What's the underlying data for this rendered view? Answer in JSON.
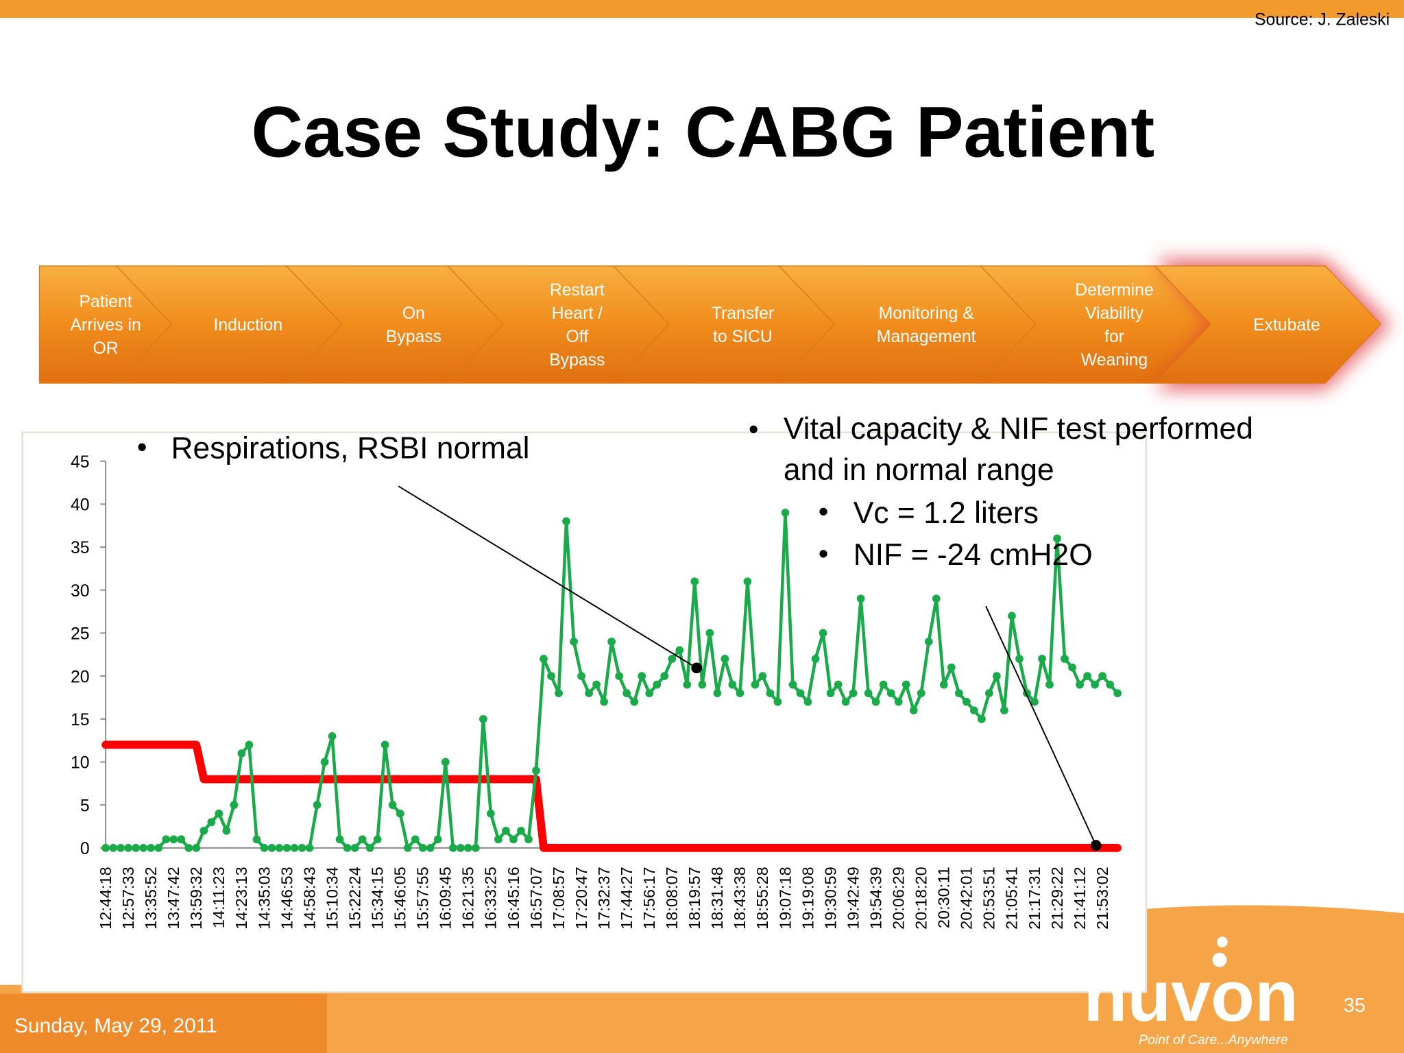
{
  "header": {
    "source": "Source: J. Zaleski",
    "title": "Case Study: CABG Patient"
  },
  "steps": [
    [
      "Patient",
      "Arrives in",
      "OR"
    ],
    [
      "Induction"
    ],
    [
      "On",
      "Bypass"
    ],
    [
      "Restart",
      "Heart /",
      "Off",
      "Bypass"
    ],
    [
      "Transfer",
      "to SICU"
    ],
    [
      "Monitoring &",
      "Management"
    ],
    [
      "Determine",
      "Viability",
      "for",
      "Weaning"
    ],
    [
      "Extubate"
    ]
  ],
  "chart_data": {
    "type": "line",
    "categories": [
      "12:44:18",
      null,
      null,
      "12:57:33",
      null,
      null,
      "13:35:52",
      null,
      null,
      "13:47:42",
      null,
      null,
      "13:59:32",
      null,
      null,
      "14:11:23",
      null,
      null,
      "14:23:13",
      null,
      null,
      "14:35:03",
      null,
      null,
      "14:46:53",
      null,
      null,
      "14:58:43",
      null,
      null,
      "15:10:34",
      null,
      null,
      "15:22:24",
      null,
      null,
      "15:34:15",
      null,
      null,
      "15:46:05",
      null,
      null,
      "15:57:55",
      null,
      null,
      "16:09:45",
      null,
      null,
      "16:21:35",
      null,
      null,
      "16:33:25",
      null,
      null,
      "16:45:16",
      null,
      null,
      "16:57:07",
      null,
      null,
      "17:08:57",
      null,
      null,
      "17:20:47",
      null,
      null,
      "17:32:37",
      null,
      null,
      "17:44:27",
      null,
      null,
      "17:56:17",
      null,
      null,
      "18:08:07",
      null,
      null,
      "18:19:57",
      null,
      null,
      "18:31:48",
      null,
      null,
      "18:43:38",
      null,
      null,
      "18:55:28",
      null,
      null,
      "19:07:18",
      null,
      null,
      "19:19:08",
      null,
      null,
      "19:30:59",
      null,
      null,
      "19:42:49",
      null,
      null,
      "19:54:39",
      null,
      null,
      "20:06:29",
      null,
      null,
      "20:18:20",
      null,
      null,
      "20:30:11",
      null,
      null,
      "20:42:01",
      null,
      null,
      "20:53:51",
      null,
      null,
      "21:05:41",
      null,
      null,
      "21:17:31",
      null,
      null,
      "21:29:22",
      null,
      null,
      "21:41:12",
      null,
      null,
      "21:53:02",
      null,
      null
    ],
    "series": [
      {
        "color": "#ff0000",
        "values": [
          12,
          12,
          12,
          12,
          12,
          12,
          12,
          12,
          12,
          12,
          12,
          12,
          12,
          8,
          8,
          8,
          8,
          8,
          8,
          8,
          8,
          8,
          8,
          8,
          8,
          8,
          8,
          8,
          8,
          8,
          8,
          8,
          8,
          8,
          8,
          8,
          8,
          8,
          8,
          8,
          8,
          8,
          8,
          8,
          8,
          8,
          8,
          8,
          8,
          8,
          8,
          8,
          8,
          8,
          8,
          8,
          8,
          8,
          0,
          0,
          0,
          0,
          0,
          0,
          0,
          0,
          0,
          0,
          0,
          0,
          0,
          0,
          0,
          0,
          0,
          0,
          0,
          0,
          0,
          0,
          0,
          0,
          0,
          0,
          0,
          0,
          0,
          0,
          0,
          0,
          0,
          0,
          0,
          0,
          0,
          0,
          0,
          0,
          0,
          0,
          0,
          0,
          0,
          0,
          0,
          0,
          0,
          0,
          0,
          0,
          0,
          0,
          0,
          0,
          0,
          0,
          0,
          0,
          0,
          0,
          0,
          0,
          0,
          0,
          0,
          0,
          0,
          0,
          0,
          0,
          0,
          0,
          0,
          0,
          0
        ]
      },
      {
        "color": "#1aaa4a",
        "values": [
          0,
          0,
          0,
          0,
          0,
          0,
          0,
          0,
          1,
          1,
          1,
          0,
          0,
          2,
          3,
          4,
          2,
          5,
          11,
          12,
          1,
          0,
          0,
          0,
          0,
          0,
          0,
          0,
          5,
          10,
          13,
          1,
          0,
          0,
          1,
          0,
          1,
          12,
          5,
          4,
          0,
          1,
          0,
          0,
          1,
          10,
          0,
          0,
          0,
          0,
          15,
          4,
          1,
          2,
          1,
          2,
          1,
          9,
          22,
          20,
          18,
          38,
          24,
          20,
          18,
          19,
          17,
          24,
          20,
          18,
          17,
          20,
          18,
          19,
          20,
          22,
          23,
          19,
          31,
          19,
          25,
          18,
          22,
          19,
          18,
          31,
          19,
          20,
          18,
          17,
          39,
          19,
          18,
          17,
          22,
          25,
          18,
          19,
          17,
          18,
          29,
          18,
          17,
          19,
          18,
          17,
          19,
          16,
          18,
          24,
          29,
          19,
          21,
          18,
          17,
          16,
          15,
          18,
          20,
          16,
          27,
          22,
          18,
          17,
          22,
          19,
          36,
          22,
          21,
          19,
          20,
          19,
          20,
          19,
          18
        ]
      }
    ],
    "ylim": [
      0,
      45
    ],
    "yticks": [
      0,
      5,
      10,
      15,
      20,
      25,
      30,
      35,
      40,
      45
    ],
    "annotations": [
      "Respirations, RSBI normal",
      "Vital capacity & NIF test performed",
      "and in normal range",
      "Vc = 1.2 liters",
      "NIF = -24 cmH2O"
    ]
  },
  "footer": {
    "date": "Sunday, May 29, 2011",
    "page": "35",
    "logo": "nuvon",
    "tagline": "Point of Care...Anywhere"
  }
}
